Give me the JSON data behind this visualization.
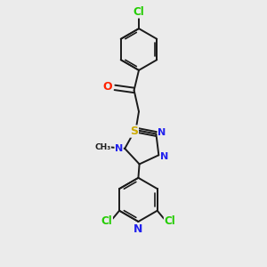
{
  "background_color": "#ebebeb",
  "bond_color": "#1a1a1a",
  "atom_colors": {
    "Cl": "#22cc00",
    "O": "#ff2200",
    "S": "#ccaa00",
    "N": "#2222ee",
    "C": "#1a1a1a"
  },
  "figsize": [
    3.0,
    3.0
  ],
  "dpi": 100
}
